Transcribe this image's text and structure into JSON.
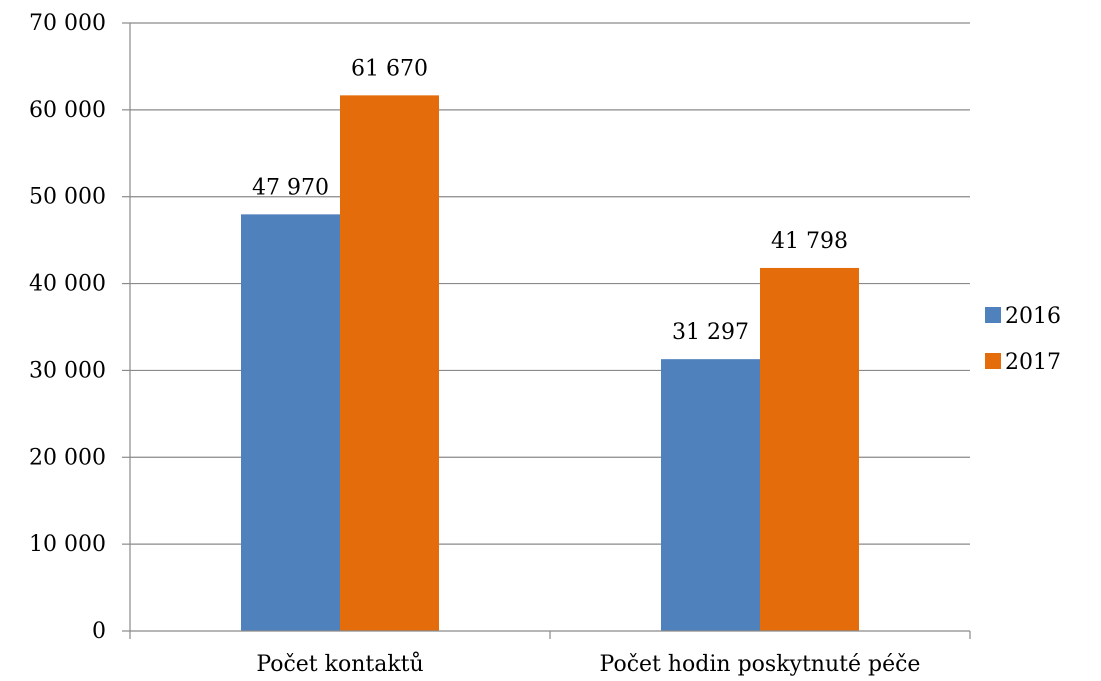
{
  "chart_data": {
    "type": "bar",
    "title": "",
    "xlabel": "",
    "ylabel": "",
    "categories": [
      "Počet kontaktů",
      "Počet hodin poskytnuté péče"
    ],
    "series": [
      {
        "name": "2016",
        "color": "#4f81bd",
        "values": [
          47970,
          31297
        ],
        "labels": [
          "47 970",
          "31 297"
        ]
      },
      {
        "name": "2017",
        "color": "#e46c0a",
        "values": [
          61670,
          41798
        ],
        "labels": [
          "61 670",
          "41 798"
        ]
      }
    ],
    "ylim": [
      0,
      70000
    ],
    "yticks": [
      0,
      10000,
      20000,
      30000,
      40000,
      50000,
      60000,
      70000
    ],
    "ytick_labels": [
      "0",
      "10 000",
      "20 000",
      "30 000",
      "40 000",
      "50 000",
      "60 000",
      "70 000"
    ],
    "grid": true,
    "legend_position": "right"
  }
}
